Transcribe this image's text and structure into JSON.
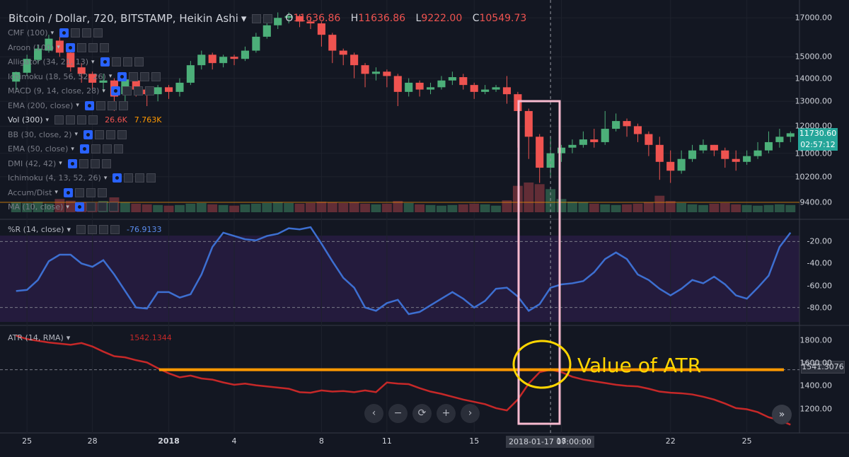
{
  "header": {
    "title": "Bitcoin / Dollar, 720, BITSTAMP, Heikin Ashi",
    "o_label": "O",
    "o_value": "11636.86",
    "h_label": "H",
    "h_value": "11636.86",
    "l_label": "L",
    "l_value": "9222.00",
    "c_label": "C",
    "c_value": "10549.73"
  },
  "indicators": [
    {
      "label": "CMF (100)"
    },
    {
      "label": "Aroon (100)"
    },
    {
      "label": "Alligator (34, 21, 13)"
    },
    {
      "label": "Ichimoku (18, 56, 52, 26)"
    },
    {
      "label": "MACD (9, 14, close, 28)"
    },
    {
      "label": "EMA (200, close)"
    },
    {
      "label": "Vol (300)"
    },
    {
      "label": "BB (30, close, 2)"
    },
    {
      "label": "EMA (50, close)"
    },
    {
      "label": "DMI (42, 42)"
    },
    {
      "label": "Ichimoku (4, 13, 52, 26)"
    },
    {
      "label": "Accum/Dist"
    },
    {
      "label": "MA (10, close)"
    }
  ],
  "vol_values": {
    "v1": "26.6K",
    "v2": "7.763K"
  },
  "wr_panel": {
    "title": "%R (14, close)",
    "value": "-76.9133"
  },
  "atr_panel": {
    "title": "ATR (14, RMA)",
    "value": "1542.1344"
  },
  "price_badges": {
    "last": "11730.60",
    "countdown": "02:57:12"
  },
  "atr_badge": "1541.3076",
  "crosshair_x_label": "2018-01-17 07:00:00",
  "annotation": "Value of ATR",
  "nav_buttons": [
    "‹",
    "−",
    "⟳",
    "+",
    "›"
  ],
  "fast_forward": "»",
  "colors": {
    "up": "#26a69a",
    "up_bright": "#4caf79",
    "down": "#ef5350",
    "wr_line": "#3d6fd1",
    "atr_line": "#c62828",
    "orange": "#ff9800",
    "pink": "#f8bbd0",
    "yellow": "#ffd600"
  },
  "chart_data": [
    {
      "type": "candlestick",
      "title": "Bitcoin / Dollar, 720, BITSTAMP, Heikin Ashi",
      "x_ticks": [
        "25",
        "28",
        "2018",
        "4",
        "8",
        "11",
        "15",
        "18",
        "22",
        "25"
      ],
      "y_ticks": [
        17000,
        15000,
        14000,
        13000,
        12000,
        11000,
        10200,
        9400
      ],
      "y_scale": "log",
      "ylim": [
        9100,
        17600
      ],
      "candles": [
        [
          13850,
          14280,
          13450,
          14300
        ],
        [
          14250,
          14900,
          14100,
          15100
        ],
        [
          14850,
          15400,
          14700,
          15600
        ],
        [
          15300,
          15900,
          15200,
          16100
        ],
        [
          15800,
          15200,
          15000,
          16000
        ],
        [
          15200,
          14500,
          14300,
          15300
        ],
        [
          14500,
          14200,
          13800,
          14700
        ],
        [
          14200,
          13800,
          13500,
          14300
        ],
        [
          13800,
          13900,
          13400,
          14200
        ],
        [
          13900,
          13200,
          12600,
          14000
        ],
        [
          13300,
          13950,
          13000,
          14100
        ],
        [
          13900,
          13500,
          13200,
          14000
        ],
        [
          13500,
          13300,
          12800,
          13600
        ],
        [
          13300,
          13600,
          13000,
          13700
        ],
        [
          13600,
          13400,
          13100,
          13700
        ],
        [
          13400,
          13800,
          13200,
          14000
        ],
        [
          13800,
          14600,
          13700,
          14800
        ],
        [
          14600,
          15100,
          14400,
          15300
        ],
        [
          15100,
          14700,
          14400,
          15200
        ],
        [
          14700,
          15000,
          14500,
          15100
        ],
        [
          15000,
          14900,
          14600,
          15100
        ],
        [
          14900,
          15300,
          14800,
          15500
        ],
        [
          15300,
          16000,
          15200,
          16200
        ],
        [
          16000,
          16600,
          15900,
          16800
        ],
        [
          16600,
          17000,
          16400,
          17300
        ],
        [
          17000,
          17100,
          16700,
          17300
        ],
        [
          17100,
          16800,
          16500,
          17200
        ],
        [
          16800,
          16700,
          16400,
          17000
        ],
        [
          16700,
          16100,
          15500,
          16800
        ],
        [
          16100,
          15300,
          14700,
          16200
        ],
        [
          15300,
          15100,
          14600,
          15400
        ],
        [
          15100,
          14600,
          14000,
          15200
        ],
        [
          14600,
          14200,
          13600,
          14700
        ],
        [
          14200,
          14300,
          13900,
          14500
        ],
        [
          14300,
          14100,
          13600,
          14400
        ],
        [
          14100,
          13400,
          12800,
          14200
        ],
        [
          13400,
          13800,
          13200,
          14000
        ],
        [
          13800,
          13500,
          13200,
          13900
        ],
        [
          13500,
          13600,
          13300,
          13800
        ],
        [
          13600,
          13900,
          13500,
          14100
        ],
        [
          13900,
          14050,
          13700,
          14300
        ],
        [
          14050,
          13700,
          13500,
          14200
        ],
        [
          13700,
          13400,
          13100,
          13800
        ],
        [
          13400,
          13500,
          13300,
          13700
        ],
        [
          13500,
          13600,
          13400,
          13700
        ],
        [
          13600,
          13300,
          12900,
          14100
        ],
        [
          13300,
          12600,
          11200,
          13400
        ],
        [
          12600,
          11600,
          10800,
          12700
        ],
        [
          11600,
          10500,
          10000,
          11700
        ],
        [
          10500,
          11000,
          10200,
          11600
        ],
        [
          11000,
          11200,
          10700,
          11300
        ],
        [
          11200,
          11300,
          11000,
          11500
        ],
        [
          11300,
          11500,
          11200,
          11800
        ],
        [
          11500,
          11400,
          11200,
          11900
        ],
        [
          11400,
          11900,
          11300,
          12600
        ],
        [
          11900,
          12200,
          11800,
          12500
        ],
        [
          12200,
          12000,
          11600,
          12300
        ],
        [
          12000,
          11700,
          11400,
          12100
        ],
        [
          11700,
          11300,
          10900,
          11800
        ],
        [
          11300,
          10700,
          10100,
          11600
        ],
        [
          10700,
          10400,
          10000,
          11100
        ],
        [
          10400,
          10800,
          10300,
          11100
        ],
        [
          10800,
          11100,
          10700,
          11300
        ],
        [
          11100,
          11300,
          11000,
          11500
        ],
        [
          11300,
          11100,
          10900,
          11300
        ],
        [
          11100,
          10800,
          10500,
          11200
        ],
        [
          10800,
          10700,
          10400,
          11100
        ],
        [
          10700,
          10900,
          10600,
          11100
        ],
        [
          10900,
          11100,
          10800,
          11400
        ],
        [
          11100,
          11400,
          11000,
          11800
        ],
        [
          11400,
          11600,
          11200,
          11900
        ],
        [
          11600,
          11730,
          11400,
          11800
        ]
      ],
      "volume": [
        30,
        28,
        32,
        26,
        40,
        35,
        30,
        28,
        34,
        45,
        30,
        26,
        24,
        22,
        20,
        22,
        26,
        28,
        24,
        22,
        20,
        24,
        26,
        28,
        30,
        28,
        26,
        28,
        32,
        30,
        28,
        30,
        26,
        24,
        26,
        34,
        28,
        24,
        22,
        20,
        22,
        24,
        26,
        24,
        20,
        36,
        80,
        90,
        85,
        70,
        40,
        32,
        30,
        26,
        24,
        22,
        24,
        26,
        30,
        50,
        34,
        28,
        24,
        22,
        26,
        28,
        24,
        22,
        20,
        22,
        24,
        22
      ]
    },
    {
      "type": "line",
      "title": "%R (14, close)",
      "y_ticks": [
        -20,
        -40,
        -60,
        -80
      ],
      "ylim": [
        -5,
        -95
      ],
      "bands": [
        -20,
        -80
      ],
      "values": [
        -65,
        -64,
        -55,
        -38,
        -32,
        -32,
        -40,
        -43,
        -37,
        -50,
        -65,
        -80,
        -81,
        -66,
        -66,
        -71,
        -68,
        -50,
        -25,
        -12,
        -15,
        -18,
        -19,
        -15,
        -13,
        -8,
        -9,
        -7,
        -22,
        -38,
        -53,
        -62,
        -80,
        -83,
        -76,
        -73,
        -86,
        -84,
        -78,
        -72,
        -66,
        -72,
        -80,
        -74,
        -63,
        -62,
        -70,
        -83,
        -77,
        -62,
        -59,
        -58,
        -56,
        -48,
        -36,
        -30,
        -36,
        -50,
        -55,
        -63,
        -69,
        -63,
        -55,
        -58,
        -52,
        -59,
        -69,
        -72,
        -62,
        -51,
        -25,
        -12
      ]
    },
    {
      "type": "line",
      "title": "ATR (14, RMA)",
      "y_ticks": [
        1800,
        1600,
        1400,
        1200
      ],
      "ylim": [
        1000,
        1880
      ],
      "values": [
        1840,
        1810,
        1795,
        1780,
        1770,
        1760,
        1775,
        1745,
        1700,
        1660,
        1650,
        1625,
        1605,
        1555,
        1510,
        1475,
        1490,
        1465,
        1455,
        1430,
        1410,
        1420,
        1405,
        1395,
        1385,
        1375,
        1345,
        1340,
        1360,
        1350,
        1355,
        1345,
        1360,
        1345,
        1430,
        1420,
        1415,
        1380,
        1350,
        1330,
        1305,
        1280,
        1260,
        1240,
        1205,
        1185,
        1280,
        1420,
        1520,
        1542,
        1520,
        1480,
        1455,
        1440,
        1425,
        1410,
        1400,
        1395,
        1375,
        1350,
        1340,
        1335,
        1325,
        1305,
        1280,
        1245,
        1205,
        1195,
        1170,
        1125,
        1100,
        1060
      ]
    }
  ]
}
